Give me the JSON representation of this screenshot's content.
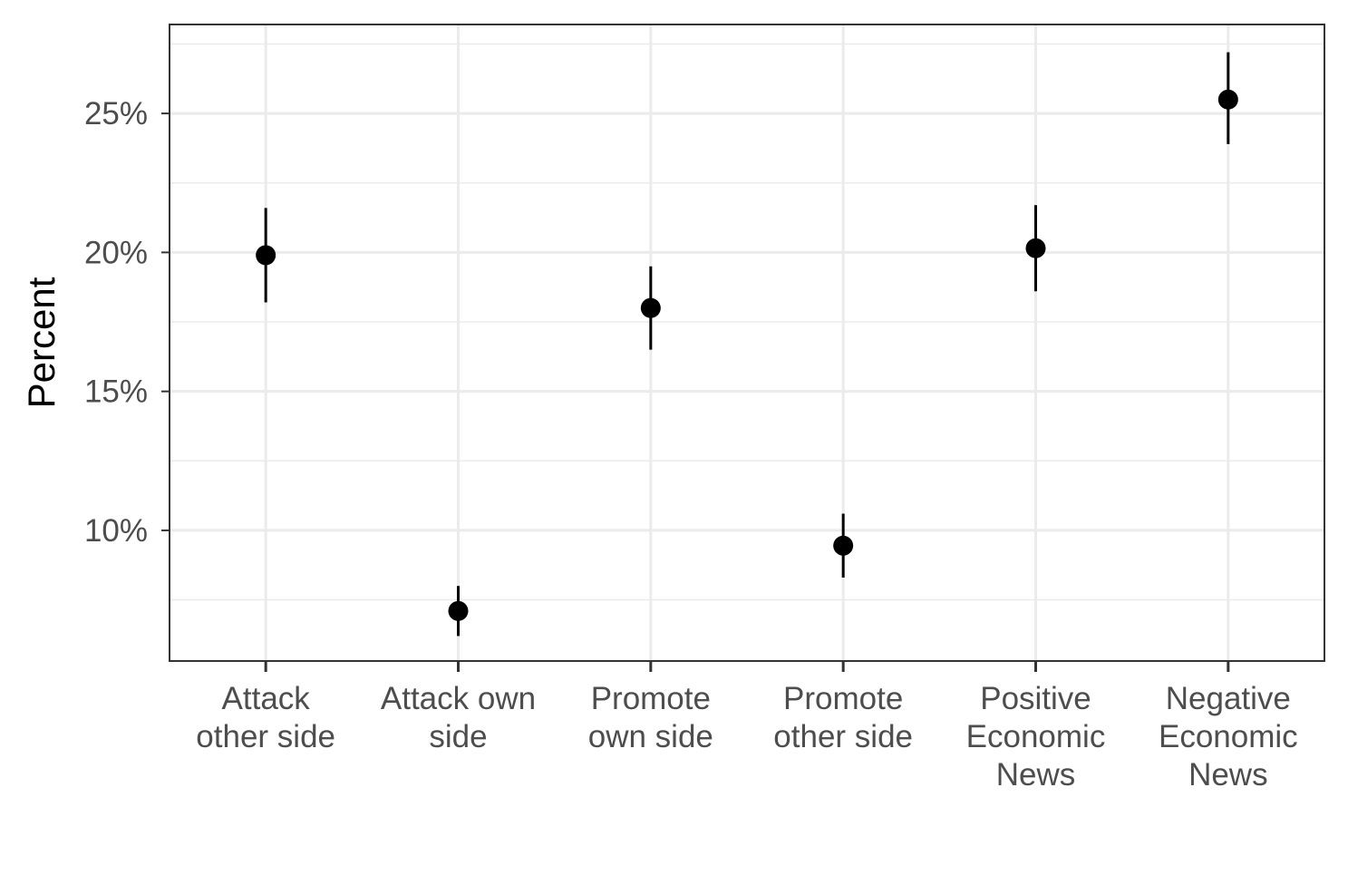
{
  "chart_data": {
    "type": "scatter",
    "title": "",
    "xlabel": "",
    "ylabel": "Percent",
    "ylim": [
      5.3,
      28.2
    ],
    "yticks": [
      10,
      15,
      20,
      25
    ],
    "ytick_labels": [
      "10%",
      "15%",
      "20%",
      "25%"
    ],
    "grid": true,
    "legend": "none",
    "categories": [
      "Attack\nother side",
      "Attack own\nside",
      "Promote\nown side",
      "Promote\nother side",
      "Positive\nEconomic\nNews",
      "Negative\nEconomic\nNews"
    ],
    "values": [
      19.9,
      7.1,
      18.0,
      9.45,
      20.15,
      25.5
    ],
    "ci_lower": [
      18.2,
      6.2,
      16.5,
      8.3,
      18.6,
      23.9
    ],
    "ci_upper": [
      21.6,
      8.0,
      19.5,
      10.6,
      21.7,
      27.2
    ]
  },
  "colors": {
    "panel_border": "#333333",
    "grid_major": "#ebebeb",
    "grid_minor": "#ebebeb",
    "point": "#000000",
    "tick_text": "#4d4d4d"
  }
}
